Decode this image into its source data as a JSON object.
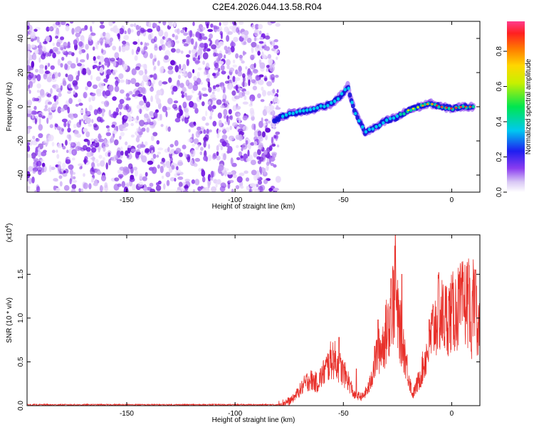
{
  "title": "C2E4.2026.044.13.58.R04",
  "chart_data": [
    {
      "type": "heatmap",
      "name": "spectrogram",
      "xlabel": "Height of straight line (km)",
      "ylabel": "Frequency (Hz)",
      "xlim": [
        -196,
        13
      ],
      "ylim": [
        -50,
        50
      ],
      "xticks": [
        -150,
        -100,
        -50,
        0
      ],
      "yticks": [
        -40,
        -20,
        0,
        20,
        40
      ],
      "noise_region_x": [
        -196,
        -82
      ],
      "signal_track": [
        {
          "x": -82,
          "y": -8
        },
        {
          "x": -75,
          "y": -4
        },
        {
          "x": -65,
          "y": -2
        },
        {
          "x": -55,
          "y": 2
        },
        {
          "x": -50,
          "y": 8
        },
        {
          "x": -48,
          "y": 12
        },
        {
          "x": -45,
          "y": -2
        },
        {
          "x": -40,
          "y": -15
        },
        {
          "x": -35,
          "y": -12
        },
        {
          "x": -30,
          "y": -8
        },
        {
          "x": -25,
          "y": -6
        },
        {
          "x": -20,
          "y": -2
        },
        {
          "x": -15,
          "y": 0
        },
        {
          "x": -10,
          "y": 2
        },
        {
          "x": -5,
          "y": 0
        },
        {
          "x": 0,
          "y": -1
        },
        {
          "x": 5,
          "y": 0
        },
        {
          "x": 10,
          "y": 0
        }
      ],
      "colorbar": {
        "label": "Normalized spectral amplitude",
        "range": [
          0,
          0.97
        ],
        "ticks": [
          "0.0",
          "0.2",
          "0.4",
          "0.6",
          "0.8"
        ],
        "tick_values": [
          0.0,
          0.2,
          0.4,
          0.6,
          0.8
        ]
      }
    },
    {
      "type": "line",
      "name": "snr",
      "xlabel": "Height of straight line (km)",
      "ylabel": "SNR (10 * v/v)",
      "scale_label": "(x10",
      "scale_exp": "4",
      "scale_close": ")",
      "xlim": [
        -196,
        13
      ],
      "ylim": [
        0,
        1.95
      ],
      "xticks": [
        -150,
        -100,
        -50,
        0
      ],
      "yticks": [
        "0.0",
        "0.5",
        "1.0",
        "1.5"
      ],
      "ytick_values": [
        0.0,
        0.5,
        1.0,
        1.5
      ],
      "line_color": "#e8302a",
      "series_profile": [
        {
          "x": -196,
          "y": 0.01
        },
        {
          "x": -80,
          "y": 0.01
        },
        {
          "x": -74,
          "y": 0.06
        },
        {
          "x": -70,
          "y": 0.18
        },
        {
          "x": -66,
          "y": 0.3
        },
        {
          "x": -62,
          "y": 0.26
        },
        {
          "x": -58,
          "y": 0.42
        },
        {
          "x": -55,
          "y": 0.55
        },
        {
          "x": -52,
          "y": 0.45
        },
        {
          "x": -48,
          "y": 0.3
        },
        {
          "x": -45,
          "y": 0.12
        },
        {
          "x": -41,
          "y": 0.1
        },
        {
          "x": -38,
          "y": 0.22
        },
        {
          "x": -35,
          "y": 0.55
        },
        {
          "x": -31,
          "y": 0.75
        },
        {
          "x": -28,
          "y": 1.1
        },
        {
          "x": -26,
          "y": 1.3
        },
        {
          "x": -25,
          "y": 1.0
        },
        {
          "x": -22,
          "y": 0.65
        },
        {
          "x": -20,
          "y": 0.35
        },
        {
          "x": -18,
          "y": 0.12
        },
        {
          "x": -15,
          "y": 0.3
        },
        {
          "x": -12,
          "y": 0.55
        },
        {
          "x": -9,
          "y": 0.85
        },
        {
          "x": -6,
          "y": 1.05
        },
        {
          "x": -3,
          "y": 1.0
        },
        {
          "x": 0,
          "y": 1.05
        },
        {
          "x": 5,
          "y": 1.15
        },
        {
          "x": 8,
          "y": 1.2
        },
        {
          "x": 9,
          "y": 0.7
        },
        {
          "x": 10,
          "y": 1.2
        },
        {
          "x": 13,
          "y": 0.9
        }
      ],
      "spikes": [
        {
          "x": -52,
          "y": 0.78
        },
        {
          "x": -44,
          "y": 0.42
        },
        {
          "x": -34,
          "y": 0.98
        },
        {
          "x": -28,
          "y": 1.45
        },
        {
          "x": -26,
          "y": 1.96
        },
        {
          "x": -23,
          "y": 1.5
        },
        {
          "x": -6,
          "y": 1.52
        },
        {
          "x": 8,
          "y": 1.6
        },
        {
          "x": 11,
          "y": 1.55
        },
        {
          "x": 9,
          "y": 0.62
        }
      ]
    }
  ]
}
